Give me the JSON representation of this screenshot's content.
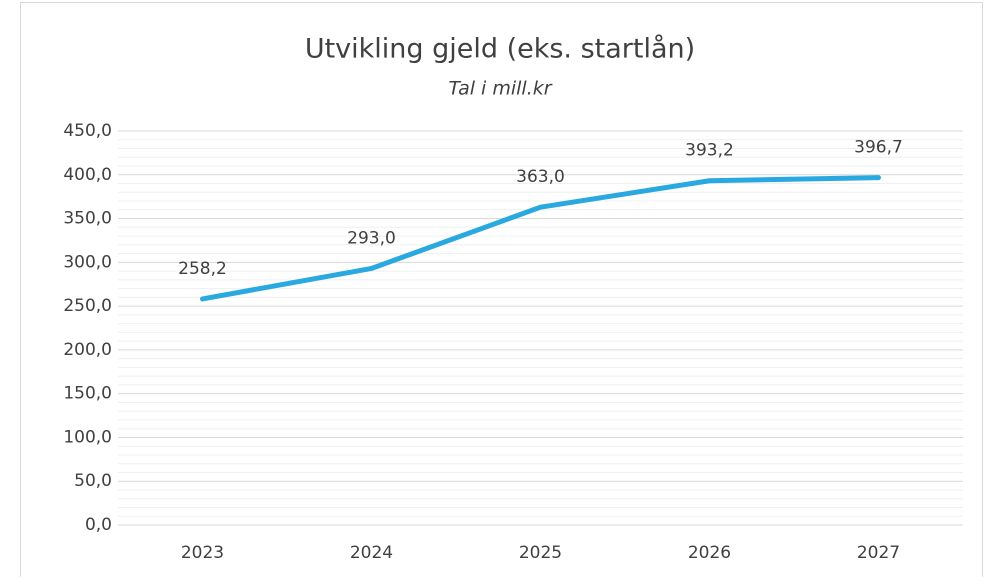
{
  "chart_data": {
    "type": "line",
    "title": "Utvikling gjeld (eks. startlån)",
    "subtitle": "Tal i mill.kr",
    "categories": [
      "2023",
      "2024",
      "2025",
      "2026",
      "2027"
    ],
    "series": [
      {
        "name": "Gjeld",
        "color": "#2aa9e0",
        "values": [
          258.2,
          293.0,
          363.0,
          393.2,
          396.7
        ],
        "value_labels": [
          "258,2",
          "293,0",
          "363,0",
          "393,2",
          "396,7"
        ]
      }
    ],
    "ylim": [
      0,
      450
    ],
    "yticks": [
      {
        "value": 0,
        "label": "0,0"
      },
      {
        "value": 50,
        "label": "50,0"
      },
      {
        "value": 100,
        "label": "100,0"
      },
      {
        "value": 150,
        "label": "150,0"
      },
      {
        "value": 200,
        "label": "200,0"
      },
      {
        "value": 250,
        "label": "250,0"
      },
      {
        "value": 300,
        "label": "300,0"
      },
      {
        "value": 350,
        "label": "350,0"
      },
      {
        "value": 400,
        "label": "400,0"
      },
      {
        "value": 450,
        "label": "450,0"
      }
    ],
    "grid": true,
    "minor_grid": true
  }
}
